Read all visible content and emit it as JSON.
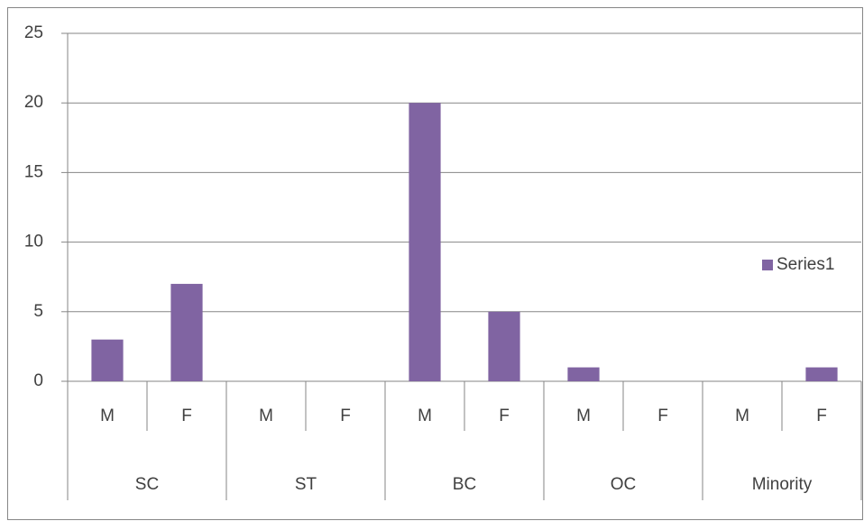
{
  "chart_data": {
    "type": "bar",
    "categories": [
      "M",
      "F",
      "M",
      "F",
      "M",
      "F",
      "M",
      "F",
      "M",
      "F"
    ],
    "category_groups": [
      "SC",
      "ST",
      "BC",
      "OC",
      "Minority"
    ],
    "series": [
      {
        "name": "Series1",
        "color": "#8064a2",
        "values": [
          3,
          7,
          0,
          0,
          20,
          5,
          1,
          0,
          0,
          1
        ]
      }
    ],
    "ylim": [
      0,
      25
    ],
    "yticks": [
      0,
      5,
      10,
      15,
      20,
      25
    ],
    "grid": true,
    "legend": "right"
  }
}
